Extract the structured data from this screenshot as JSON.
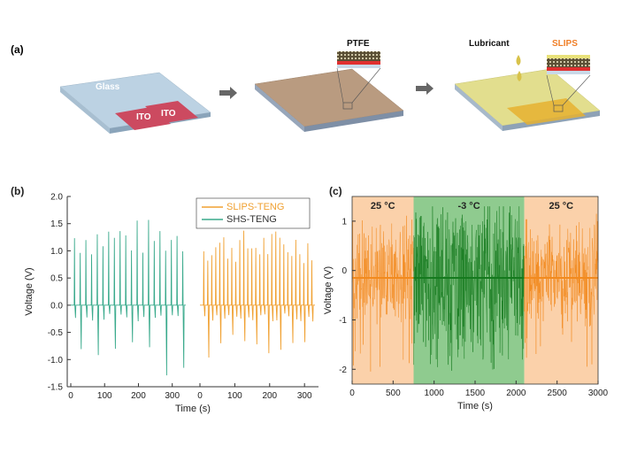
{
  "panel_a": {
    "label": "(a)",
    "glass_label": "Glass",
    "ito_label_1": "ITO",
    "ito_label_2": "ITO",
    "ptfe_label": "PTFE",
    "lubricant_label": "Lubricant",
    "slips_label": "SLIPS",
    "colors": {
      "glass": "#b9cfe0",
      "ito": "#c9455a",
      "ptfe": "#b89a7e",
      "slips": "#e0dc8a",
      "slips_accent": "#f07f28"
    }
  },
  "chart_data": [
    {
      "panel": "(b)",
      "type": "line",
      "xlabel": "Time (s)",
      "ylabel": "Voltage (V)",
      "ylim": [
        -1.5,
        2.0
      ],
      "yticks": [
        "-1.5",
        "-1.0",
        "-0.5",
        "0.0",
        "0.5",
        "1.0",
        "1.5",
        "2.0"
      ],
      "xticks_left": [
        "0",
        "100",
        "200",
        "300"
      ],
      "xticks_right": [
        "0",
        "100",
        "200",
        "300"
      ],
      "series": [
        {
          "name": "SLIPS-TENG",
          "color": "#f0a030",
          "x_range": [
            0,
            330
          ],
          "peaks": 28,
          "pos_max": 1.4,
          "neg_min": -1.0
        },
        {
          "name": "SHS-TENG",
          "color": "#3aaa8c",
          "x_range": [
            0,
            340
          ],
          "peaks": 20,
          "pos_max": 1.6,
          "neg_min": -1.3
        }
      ],
      "legend": "top-right"
    },
    {
      "panel": "(c)",
      "type": "line",
      "xlabel": "Time (s)",
      "ylabel": "Voltage (V)",
      "xlim": [
        0,
        3000
      ],
      "ylim": [
        -2.3,
        1.5
      ],
      "xticks": [
        "0",
        "500",
        "1000",
        "1500",
        "2000",
        "2500",
        "3000"
      ],
      "yticks": [
        "-2",
        "-1",
        "0",
        "1"
      ],
      "regions": [
        {
          "label": "25 °C",
          "from": 0,
          "to": 750,
          "color": "#fbd1aa"
        },
        {
          "label": "-3 °C",
          "from": 750,
          "to": 2100,
          "color": "#8fcb8f"
        },
        {
          "label": "25 °C",
          "from": 2100,
          "to": 3000,
          "color": "#fbd1aa"
        }
      ],
      "series": [
        {
          "segment": "warm-1",
          "color": "#f28a1e",
          "from": 0,
          "to": 750
        },
        {
          "segment": "cold",
          "color": "#157a1e",
          "from": 750,
          "to": 2100
        },
        {
          "segment": "warm-2",
          "color": "#f28a1e",
          "from": 2100,
          "to": 3000
        }
      ]
    }
  ]
}
